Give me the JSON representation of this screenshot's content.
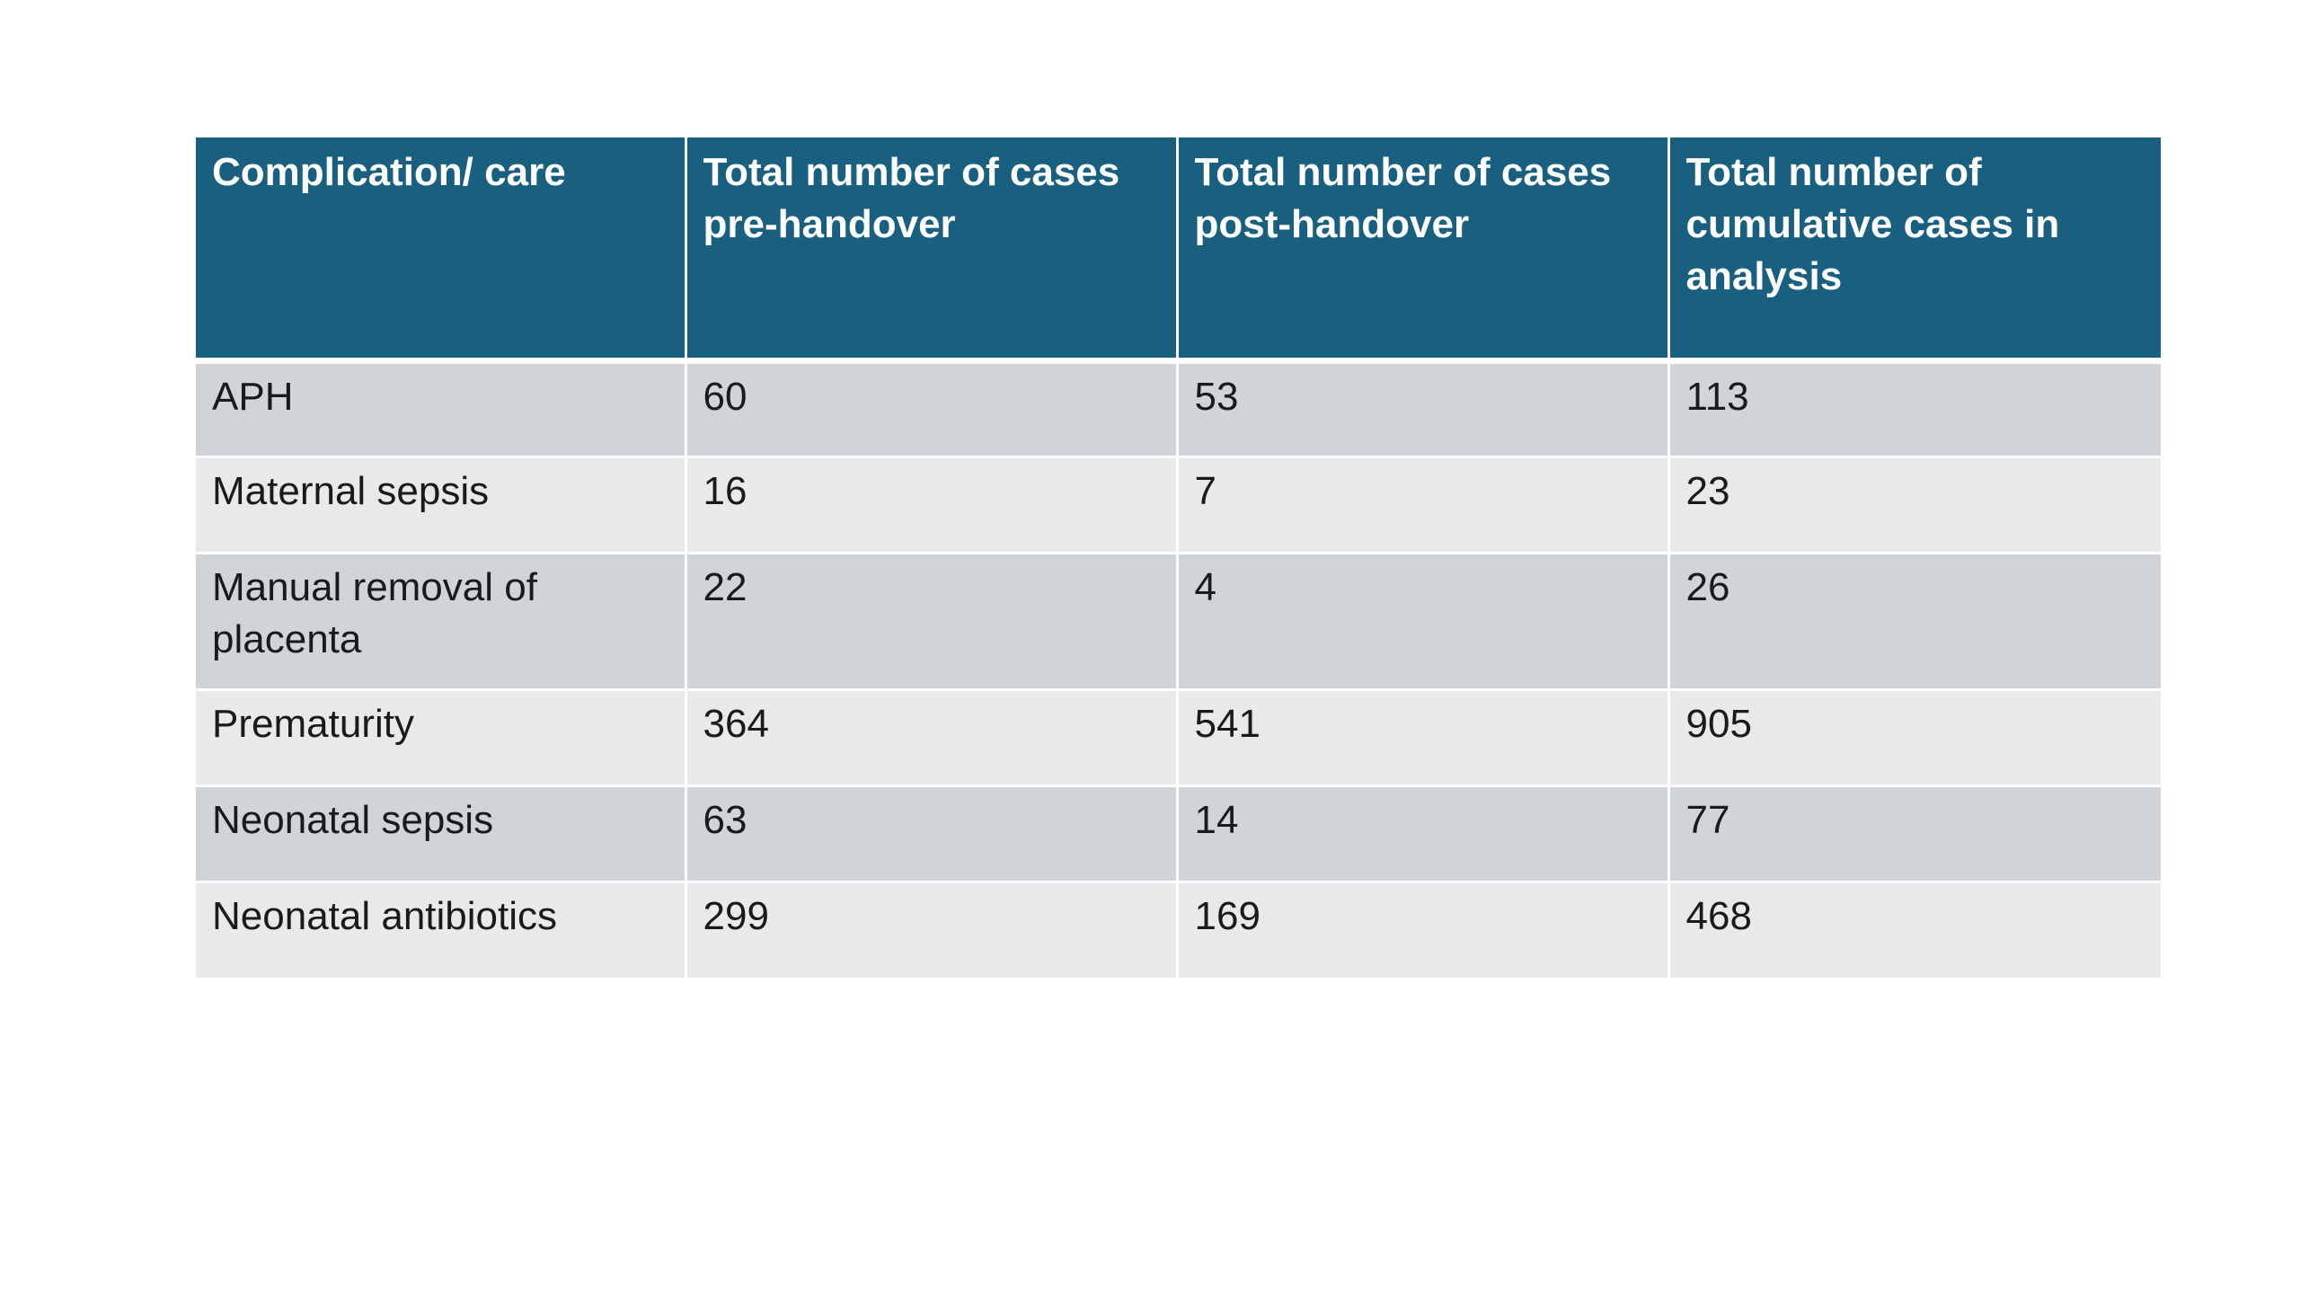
{
  "table": {
    "headers": [
      "Complication/ care",
      "Total number of cases pre-handover",
      "Total number of cases post-handover",
      "Total number of cumulative cases in analysis"
    ],
    "rows": [
      [
        "APH",
        "60",
        "53",
        "113"
      ],
      [
        "Maternal sepsis",
        "16",
        "7",
        "23"
      ],
      [
        "Manual removal of placenta",
        "22",
        "4",
        "26"
      ],
      [
        "Prematurity",
        "364",
        "541",
        "905"
      ],
      [
        "Neonatal sepsis",
        "63",
        "14",
        "77"
      ],
      [
        "Neonatal antibiotics",
        "299",
        "169",
        "468"
      ]
    ]
  },
  "colors": {
    "header_bg": "#185f80",
    "header_text": "#ffffff",
    "row_dark": "#cfd4d9",
    "row_light": "#e8e9eb",
    "cell_text": "#1a1a1a"
  }
}
